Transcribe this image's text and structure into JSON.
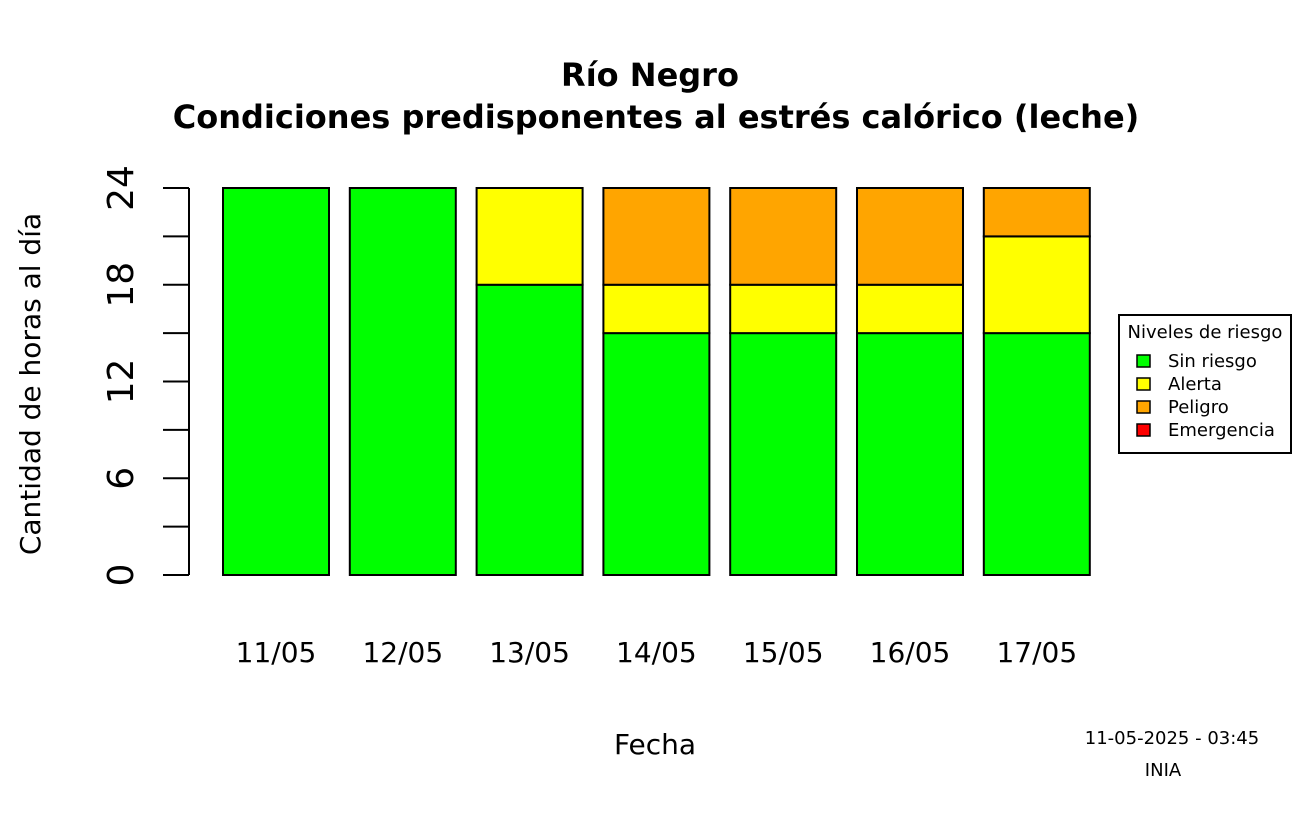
{
  "chart_data": {
    "type": "bar",
    "stacked": true,
    "title": "Río Negro",
    "subtitle": "Condiciones predisponentes al estrés calórico (leche)",
    "xlabel": "Fecha",
    "ylabel": "Cantidad de horas al día",
    "ylim": [
      0,
      24
    ],
    "yticks": [
      0,
      6,
      12,
      18,
      24
    ],
    "grid": false,
    "categories": [
      "11/05",
      "12/05",
      "13/05",
      "14/05",
      "15/05",
      "16/05",
      "17/05"
    ],
    "series": [
      {
        "name": "Sin riesgo",
        "color": "#00ff00",
        "values": [
          24,
          24,
          18,
          15,
          15,
          15,
          15
        ]
      },
      {
        "name": "Alerta",
        "color": "#ffff00",
        "values": [
          0,
          0,
          6,
          3,
          3,
          3,
          6
        ]
      },
      {
        "name": "Peligro",
        "color": "#ffa500",
        "values": [
          0,
          0,
          0,
          6,
          6,
          6,
          3
        ]
      },
      {
        "name": "Emergencia",
        "color": "#ff0000",
        "values": [
          0,
          0,
          0,
          0,
          0,
          0,
          0
        ]
      }
    ],
    "legend": {
      "title": "Niveles de riesgo",
      "placement": "right"
    }
  },
  "footer": {
    "timestamp": "11-05-2025 - 03:45",
    "source": "INIA"
  }
}
